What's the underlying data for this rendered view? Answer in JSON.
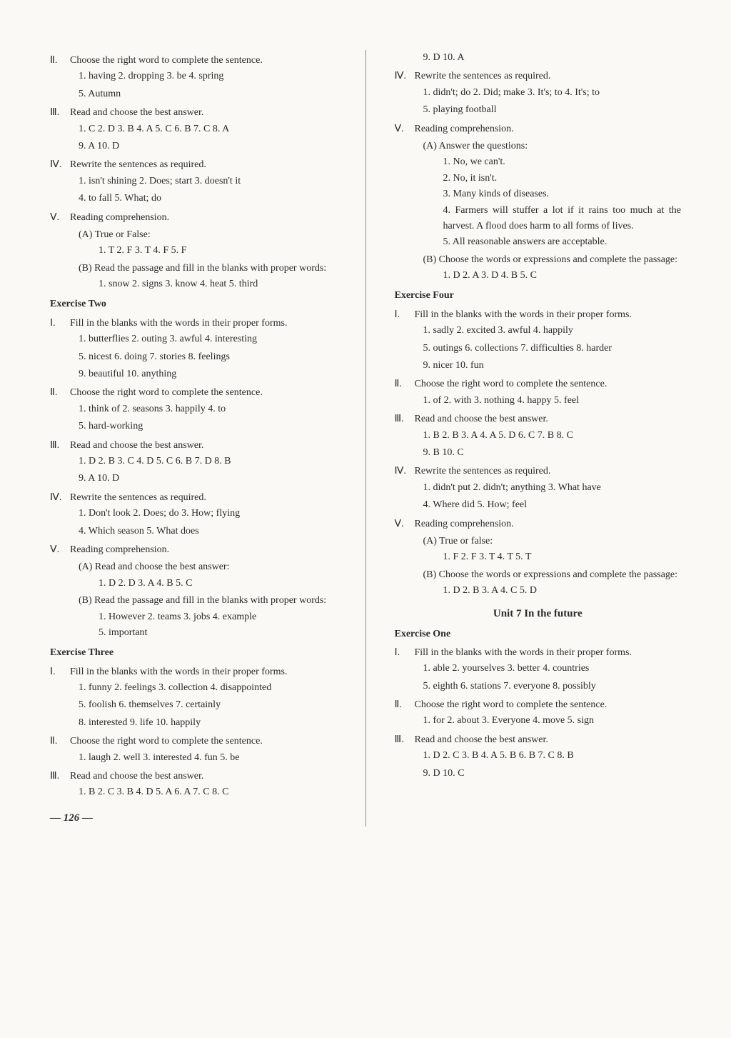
{
  "left_column": {
    "sections": [
      {
        "type": "section",
        "roman": "Ⅱ",
        "title": "Choose the right word to complete the sentence.",
        "answers": [
          "1. having   2. dropping   3. be   4. spring",
          "5. Autumn"
        ]
      },
      {
        "type": "section",
        "roman": "Ⅲ",
        "title": "Read and choose the best answer.",
        "answers": [
          "1. C   2. D   3. B   4. A   5. C   6. B   7. C   8. A",
          "9. A   10. D"
        ]
      },
      {
        "type": "section",
        "roman": "Ⅳ",
        "title": "Rewrite the sentences as required.",
        "answers": [
          "1. isn't shining   2. Does; start   3. doesn't it",
          "4. to fall   5. What; do"
        ]
      },
      {
        "type": "section",
        "roman": "Ⅴ",
        "title": "Reading comprehension.",
        "sub_sections": [
          {
            "label": "(A) True or False:",
            "answers": [
              "1. T   2. F   3. T   4. F   5. F"
            ]
          },
          {
            "label": "(B) Read the passage and fill in the blanks with proper words:",
            "answers": [
              "1. snow   2. signs   3. know   4. heat   5. third"
            ]
          }
        ]
      },
      {
        "type": "exercise",
        "heading": "Exercise Two"
      },
      {
        "type": "section",
        "roman": "Ⅰ",
        "title": "Fill in the blanks with the words in their proper forms.",
        "justified": true,
        "answers": [
          "1. butterflies   2. outing   3. awful   4. interesting",
          "5. nicest   6. doing   7. stories   8. feelings",
          "9. beautiful   10. anything"
        ]
      },
      {
        "type": "section",
        "roman": "Ⅱ",
        "title": "Choose the right word to complete the sentence.",
        "answers": [
          "1. think of   2. seasons   3. happily   4. to",
          "5. hard-working"
        ]
      },
      {
        "type": "section",
        "roman": "Ⅲ",
        "title": "Read and choose the best answer.",
        "answers": [
          "1. D   2. B   3. C   4. D   5. C   6. B   7. D   8. B",
          "9. A   10. D"
        ]
      },
      {
        "type": "section",
        "roman": "Ⅳ",
        "title": "Rewrite the sentences as required.",
        "answers": [
          "1. Don't look   2. Does; do   3. How; flying",
          "4. Which season   5. What does"
        ]
      },
      {
        "type": "section",
        "roman": "Ⅴ",
        "title": "Reading comprehension.",
        "sub_sections": [
          {
            "label": "(A) Read and choose the best answer:",
            "answers": [
              "1. D   2. D   3. A   4. B   5. C"
            ]
          },
          {
            "label": "(B) Read the passage and fill in the blanks with proper words:",
            "answers": [
              "1. However   2. teams   3. jobs   4. example",
              "5. important"
            ]
          }
        ]
      },
      {
        "type": "exercise",
        "heading": "Exercise Three"
      },
      {
        "type": "section",
        "roman": "Ⅰ",
        "title": "Fill in the blanks with the words in their proper forms.",
        "justified": true,
        "answers": [
          "1. funny   2. feelings   3. collection   4. disappointed",
          "5. foolish   6. themselves   7. certainly",
          "8. interested   9. life   10. happily"
        ]
      },
      {
        "type": "section",
        "roman": "Ⅱ",
        "title": "Choose the right word to complete the sentence.",
        "answers": [
          "1. laugh   2. well   3. interested   4. fun   5. be"
        ]
      },
      {
        "type": "section",
        "roman": "Ⅲ",
        "title": "Read and choose the best answer.",
        "answers": [
          "1. B   2. C   3. B   4. D   5. A   6. A   7. C   8. C"
        ]
      }
    ],
    "page_number": "— 126 —"
  },
  "right_column": {
    "sections": [
      {
        "type": "answers_only",
        "answers": [
          "9. D   10. A"
        ]
      },
      {
        "type": "section",
        "roman": "Ⅳ",
        "title": "Rewrite the sentences as required.",
        "answers": [
          "1. didn't; do   2. Did; make   3. It's; to   4. It's; to",
          "5. playing football"
        ]
      },
      {
        "type": "section",
        "roman": "Ⅴ",
        "title": "Reading comprehension.",
        "sub_sections": [
          {
            "label": "(A) Answer the questions:",
            "numbered_answers": [
              "1. No, we can't.",
              "2. No, it isn't.",
              "3. Many kinds of diseases.",
              "4. Farmers will stuffer a lot if it rains too much at the harvest. A flood does harm to all forms of lives.",
              "5. All reasonable answers are acceptable."
            ]
          },
          {
            "label": "(B) Choose the words or expressions and complete the passage:",
            "answers": [
              "1. D   2. A   3. D   4. B   5. C"
            ]
          }
        ]
      },
      {
        "type": "exercise",
        "heading": "Exercise Four"
      },
      {
        "type": "section",
        "roman": "Ⅰ",
        "title": "Fill in the blanks with the words in their proper forms.",
        "justified": true,
        "answers": [
          "1. sadly   2. excited   3. awful   4. happily",
          "5. outings   6. collections   7. difficulties   8. harder",
          "9. nicer   10. fun"
        ]
      },
      {
        "type": "section",
        "roman": "Ⅱ",
        "title": "Choose the right word to complete the sentence.",
        "answers": [
          "1. of   2. with   3. nothing   4. happy   5. feel"
        ]
      },
      {
        "type": "section",
        "roman": "Ⅲ",
        "title": "Read and choose the best answer.",
        "answers": [
          "1. B   2. B   3. A   4. A   5. D   6. C   7. B   8. C",
          "9. B   10. C"
        ]
      },
      {
        "type": "section",
        "roman": "Ⅳ",
        "title": "Rewrite the sentences as required.",
        "answers": [
          "1. didn't put   2. didn't; anything   3. What have",
          "4. Where did   5. How; feel"
        ]
      },
      {
        "type": "section",
        "roman": "Ⅴ",
        "title": "Reading comprehension.",
        "sub_sections": [
          {
            "label": "(A) True or false:",
            "answers": [
              "1. F   2. F   3. T   4. T   5. T"
            ]
          },
          {
            "label": "(B) Choose the words or expressions and complete the passage:",
            "answers": [
              "1. D   2. B   3. A   4. C   5. D"
            ]
          }
        ]
      },
      {
        "type": "unit",
        "heading": "Unit 7   In the future"
      },
      {
        "type": "exercise",
        "heading": "Exercise One"
      },
      {
        "type": "section",
        "roman": "Ⅰ",
        "title": "Fill in the blanks with the words in their proper forms.",
        "justified": true,
        "answers": [
          "1. able   2. yourselves   3. better   4. countries",
          "5. eighth   6. stations   7. everyone   8. possibly"
        ]
      },
      {
        "type": "section",
        "roman": "Ⅱ",
        "title": "Choose the right word to complete the sentence.",
        "answers": [
          "1. for   2. about   3. Everyone   4. move   5. sign"
        ]
      },
      {
        "type": "section",
        "roman": "Ⅲ",
        "title": "Read and choose the best answer.",
        "answers": [
          "1. D   2. C   3. B   4. A   5. B   6. B   7. C   8. B",
          "9. D   10. C"
        ]
      }
    ]
  },
  "styling": {
    "background_color": "#faf9f5",
    "text_color": "#2a2a2a",
    "font_family": "Times New Roman",
    "font_size_body": 14,
    "font_size_unit": 15,
    "divider_color": "#888"
  }
}
